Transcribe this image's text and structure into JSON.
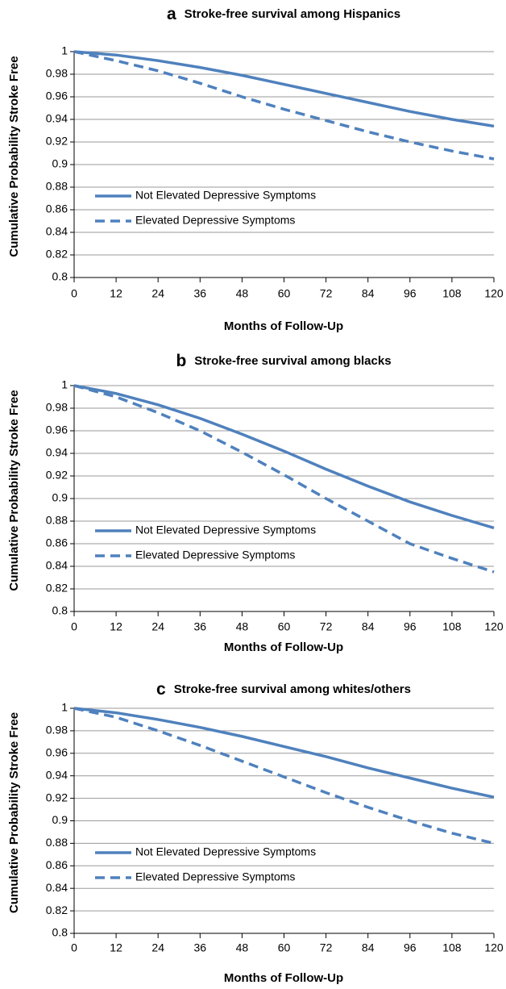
{
  "chart_data": [
    {
      "type": "line",
      "panel_label": "a",
      "title": "Stroke-free survival among Hispanics",
      "x_label": "Months of Follow-Up",
      "y_label": "Cumulative Probability Stroke Free",
      "x": [
        0,
        12,
        24,
        36,
        48,
        60,
        72,
        84,
        96,
        108,
        120
      ],
      "series": [
        {
          "name": "Not Elevated Depressive Symptoms",
          "color": "#4f81bd",
          "dash": false,
          "values": [
            1,
            0.997,
            0.992,
            0.986,
            0.979,
            0.971,
            0.963,
            0.955,
            0.947,
            0.94,
            0.934
          ]
        },
        {
          "name": "Elevated Depressive Symptoms",
          "color": "#4f81bd",
          "dash": true,
          "values": [
            1,
            0.992,
            0.983,
            0.972,
            0.96,
            0.949,
            0.939,
            0.929,
            0.92,
            0.912,
            0.905
          ]
        }
      ],
      "xlim": [
        0,
        120
      ],
      "xticks": [
        0,
        12,
        24,
        36,
        48,
        60,
        72,
        84,
        96,
        108,
        120
      ],
      "ylim": [
        0.8,
        1
      ],
      "yticks": [
        0.8,
        0.82,
        0.84,
        0.86,
        0.88,
        0.9,
        0.92,
        0.94,
        0.96,
        0.98,
        1
      ],
      "grid": true
    },
    {
      "type": "line",
      "panel_label": "b",
      "title": "Stroke-free survival among blacks",
      "x_label": "Months of Follow-Up",
      "y_label": "Cumulative Probability Stroke Free",
      "x": [
        0,
        12,
        24,
        36,
        48,
        60,
        72,
        84,
        96,
        108,
        120
      ],
      "series": [
        {
          "name": "Not Elevated Depressive Symptoms",
          "color": "#4f81bd",
          "dash": false,
          "values": [
            1,
            0.993,
            0.983,
            0.971,
            0.957,
            0.942,
            0.926,
            0.911,
            0.897,
            0.885,
            0.874
          ]
        },
        {
          "name": "Elevated Depressive Symptoms",
          "color": "#4f81bd",
          "dash": true,
          "values": [
            1,
            0.99,
            0.976,
            0.96,
            0.941,
            0.921,
            0.9,
            0.88,
            0.86,
            0.847,
            0.835
          ]
        }
      ],
      "xlim": [
        0,
        120
      ],
      "xticks": [
        0,
        12,
        24,
        36,
        48,
        60,
        72,
        84,
        96,
        108,
        120
      ],
      "ylim": [
        0.8,
        1
      ],
      "yticks": [
        0.8,
        0.82,
        0.84,
        0.86,
        0.88,
        0.9,
        0.92,
        0.94,
        0.96,
        0.98,
        1
      ],
      "grid": true
    },
    {
      "type": "line",
      "panel_label": "c",
      "title": "Stroke-free survival among whites/others",
      "x_label": "Months of Follow-Up",
      "y_label": "Cumulative Probability Stroke Free",
      "x": [
        0,
        12,
        24,
        36,
        48,
        60,
        72,
        84,
        96,
        108,
        120
      ],
      "series": [
        {
          "name": "Not Elevated Depressive Symptoms",
          "color": "#4f81bd",
          "dash": false,
          "values": [
            1,
            0.996,
            0.99,
            0.983,
            0.975,
            0.966,
            0.957,
            0.947,
            0.938,
            0.929,
            0.921
          ]
        },
        {
          "name": "Elevated Depressive Symptoms",
          "color": "#4f81bd",
          "dash": true,
          "values": [
            1,
            0.992,
            0.98,
            0.967,
            0.953,
            0.939,
            0.925,
            0.912,
            0.9,
            0.889,
            0.88
          ]
        }
      ],
      "xlim": [
        0,
        120
      ],
      "xticks": [
        0,
        12,
        24,
        36,
        48,
        60,
        72,
        84,
        96,
        108,
        120
      ],
      "ylim": [
        0.8,
        1
      ],
      "yticks": [
        0.8,
        0.82,
        0.84,
        0.86,
        0.88,
        0.9,
        0.92,
        0.94,
        0.96,
        0.98,
        1
      ],
      "grid": true
    }
  ]
}
